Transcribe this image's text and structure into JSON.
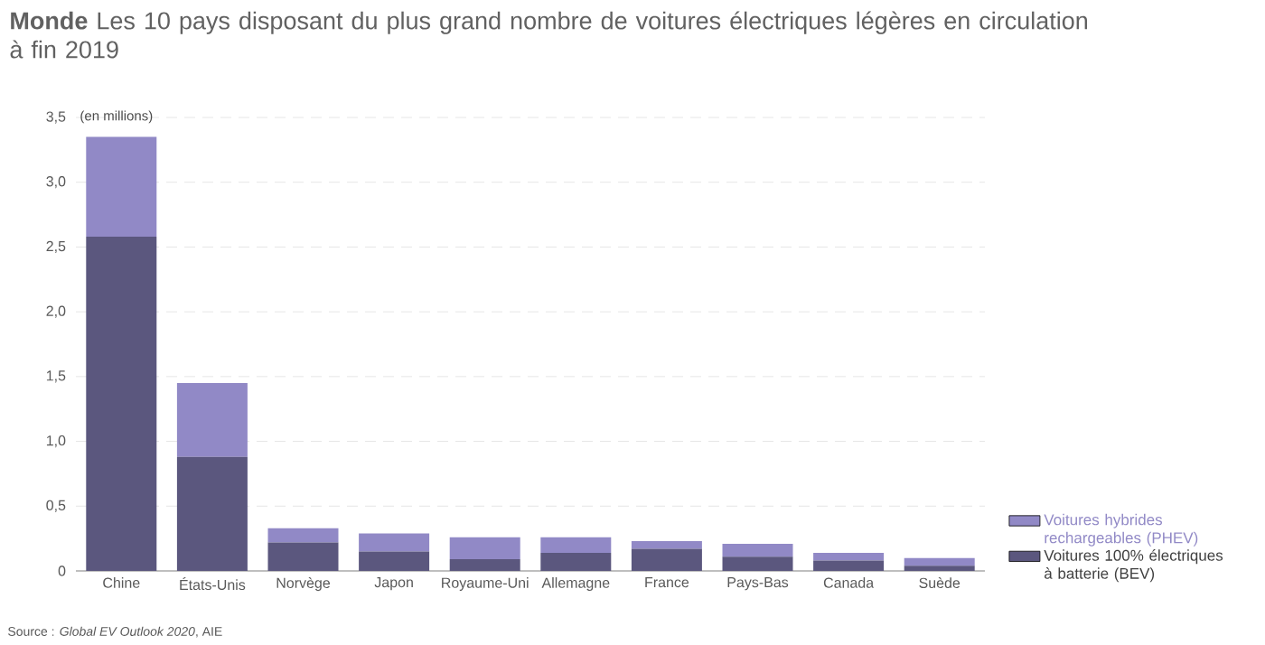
{
  "chart_data": {
    "type": "bar",
    "stacked": true,
    "title": "**Monde** Les 10 pays disposant du plus grand nombre de voitures électriques légères en circulation à fin 2019",
    "ylabel": "(en millions)",
    "annotations": [
      "Source : *Global EV Outlook 2020*, AIE"
    ],
    "categories": [
      "Chine",
      "États-Unis",
      "Norvège",
      "Japon",
      "Royaume-Uni",
      "Allemagne",
      "France",
      "Pays-Bas",
      "Canada",
      "Suède"
    ],
    "series": [
      {
        "name": "Voitures 100% électriques à batterie (BEV)",
        "color": "#5b577e",
        "values": [
          2.58,
          0.88,
          0.22,
          0.15,
          0.09,
          0.14,
          0.17,
          0.11,
          0.08,
          0.04
        ]
      },
      {
        "name": "Voitures hybrides rechargeables (PHEV)",
        "color": "#9189c6",
        "values": [
          0.77,
          0.57,
          0.11,
          0.14,
          0.17,
          0.12,
          0.06,
          0.1,
          0.06,
          0.06
        ]
      }
    ],
    "ylim": [
      0,
      3.5
    ],
    "yticks": [
      0,
      {
        "value": 0.5,
        "label": "0,5"
      },
      {
        "value": 1.0,
        "label": "1,0"
      },
      {
        "value": 1.5,
        "label": "1,5"
      },
      {
        "value": 2.0,
        "label": "2,0"
      },
      {
        "value": 2.5,
        "label": "2,5"
      },
      {
        "value": 3.0,
        "label": "3,0"
      },
      {
        "value": 3.5,
        "label": "3,5"
      }
    ],
    "grid": "y",
    "legend": "bottom right"
  }
}
